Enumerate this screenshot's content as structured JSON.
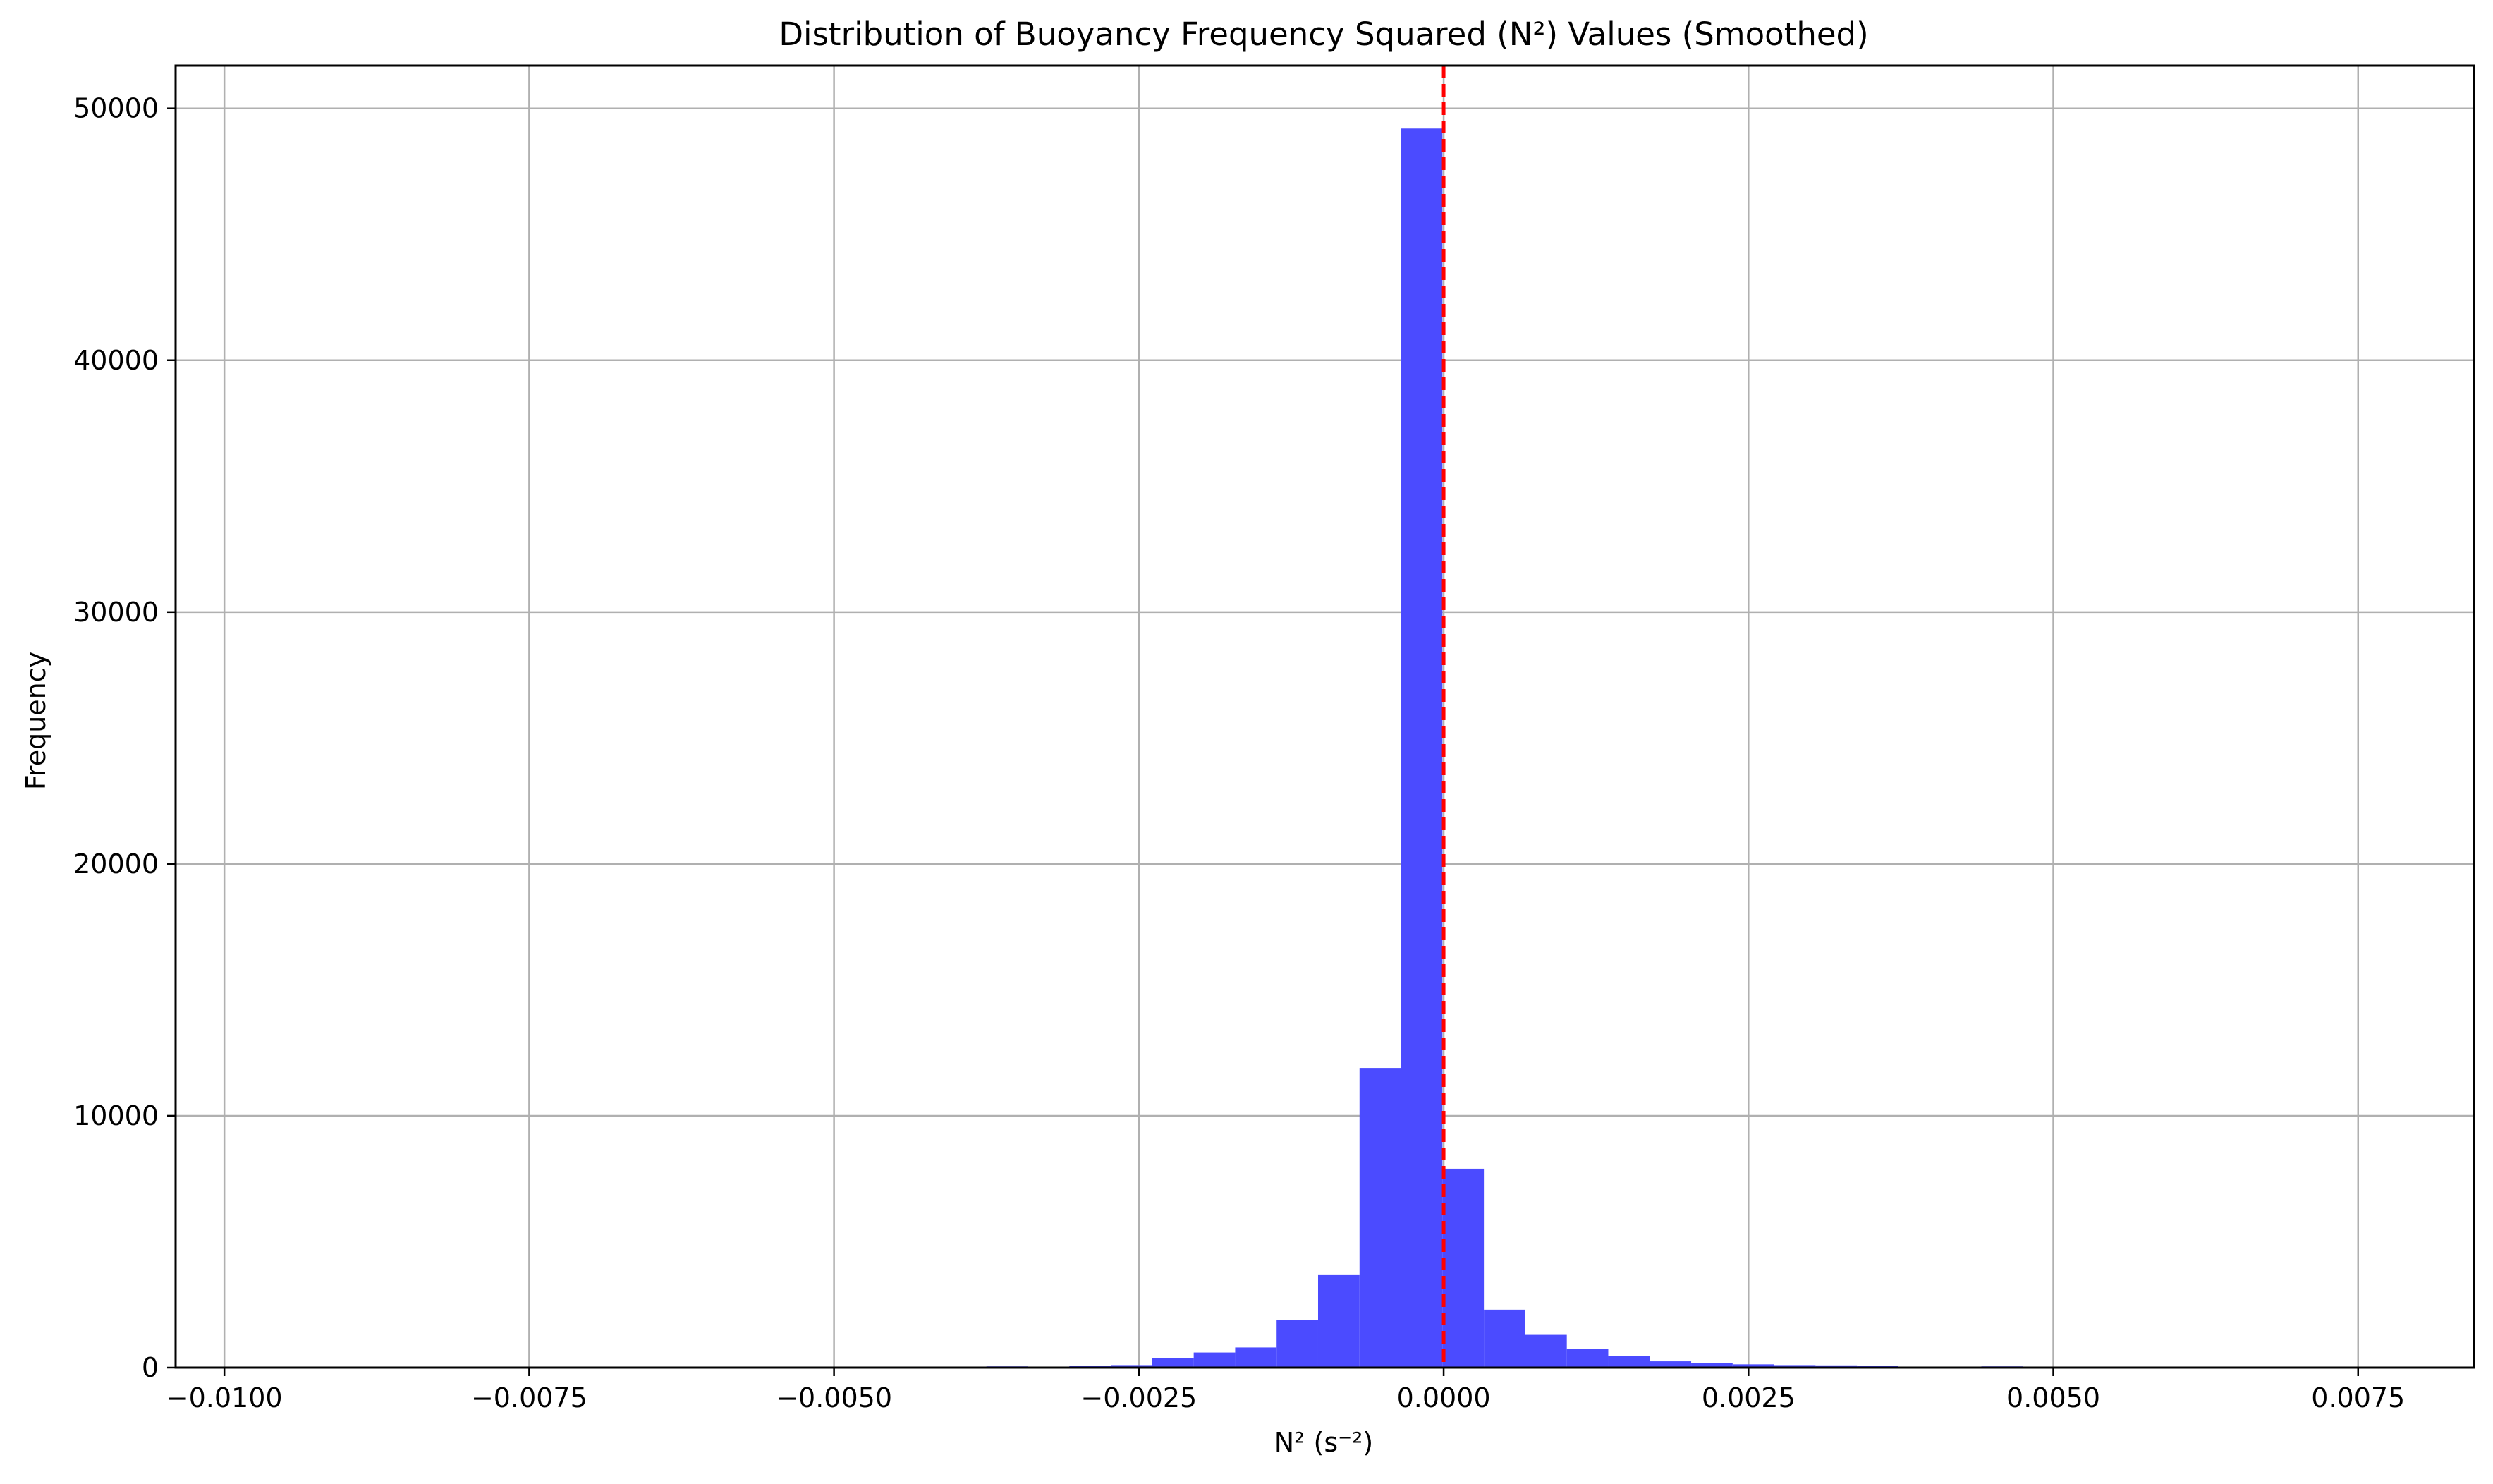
{
  "chart_data": {
    "type": "bar",
    "title": "Distribution of Buoyancy Frequency Squared (N²) Values (Smoothed)",
    "xlabel": "N² (s⁻²)",
    "ylabel": "Frequency",
    "xlim": [
      -0.0104,
      0.00845
    ],
    "ylim": [
      0,
      51700
    ],
    "x_ticks": [
      -0.01,
      -0.0075,
      -0.005,
      -0.0025,
      0.0,
      0.0025,
      0.005,
      0.0075
    ],
    "x_tick_labels": [
      "−0.0100",
      "−0.0075",
      "−0.0050",
      "−0.0025",
      "0.0000",
      "0.0025",
      "0.0050",
      "0.0075"
    ],
    "y_ticks": [
      0,
      10000,
      20000,
      30000,
      40000,
      50000
    ],
    "y_tick_labels": [
      "0",
      "10000",
      "20000",
      "30000",
      "40000",
      "50000"
    ],
    "grid": true,
    "bar_color": "#4b4bff",
    "reference_line": {
      "x": 0.0,
      "color": "#ff0000",
      "style": "dashed"
    },
    "bins": [
      {
        "x0": -0.00443,
        "x1": -0.00409,
        "count": 20
      },
      {
        "x0": -0.00409,
        "x1": -0.00375,
        "count": 40
      },
      {
        "x0": -0.00375,
        "x1": -0.00341,
        "count": 50
      },
      {
        "x0": -0.00341,
        "x1": -0.00307,
        "count": 30
      },
      {
        "x0": -0.00307,
        "x1": -0.00273,
        "count": 60
      },
      {
        "x0": -0.00273,
        "x1": -0.00239,
        "count": 100
      },
      {
        "x0": -0.00239,
        "x1": -0.00205,
        "count": 380
      },
      {
        "x0": -0.00205,
        "x1": -0.00171,
        "count": 600
      },
      {
        "x0": -0.00171,
        "x1": -0.00137,
        "count": 800
      },
      {
        "x0": -0.00137,
        "x1": -0.00103,
        "count": 1900
      },
      {
        "x0": -0.00103,
        "x1": -0.00069,
        "count": 3700
      },
      {
        "x0": -0.00069,
        "x1": -0.00035,
        "count": 11900
      },
      {
        "x0": -0.00035,
        "x1": -1e-05,
        "count": 49200
      },
      {
        "x0": -1e-05,
        "x1": 0.00033,
        "count": 7900
      },
      {
        "x0": 0.00033,
        "x1": 0.00067,
        "count": 2300
      },
      {
        "x0": 0.00067,
        "x1": 0.00101,
        "count": 1300
      },
      {
        "x0": 0.00101,
        "x1": 0.00135,
        "count": 750
      },
      {
        "x0": 0.00135,
        "x1": 0.00169,
        "count": 450
      },
      {
        "x0": 0.00169,
        "x1": 0.00203,
        "count": 250
      },
      {
        "x0": 0.00203,
        "x1": 0.00237,
        "count": 180
      },
      {
        "x0": 0.00237,
        "x1": 0.00271,
        "count": 130
      },
      {
        "x0": 0.00271,
        "x1": 0.00305,
        "count": 100
      },
      {
        "x0": 0.00305,
        "x1": 0.00339,
        "count": 90
      },
      {
        "x0": 0.00339,
        "x1": 0.00373,
        "count": 70
      },
      {
        "x0": 0.00373,
        "x1": 0.00407,
        "count": 40
      },
      {
        "x0": 0.00407,
        "x1": 0.00441,
        "count": 30
      },
      {
        "x0": 0.00441,
        "x1": 0.00475,
        "count": 50
      },
      {
        "x0": 0.00475,
        "x1": 0.00509,
        "count": 20
      }
    ]
  }
}
